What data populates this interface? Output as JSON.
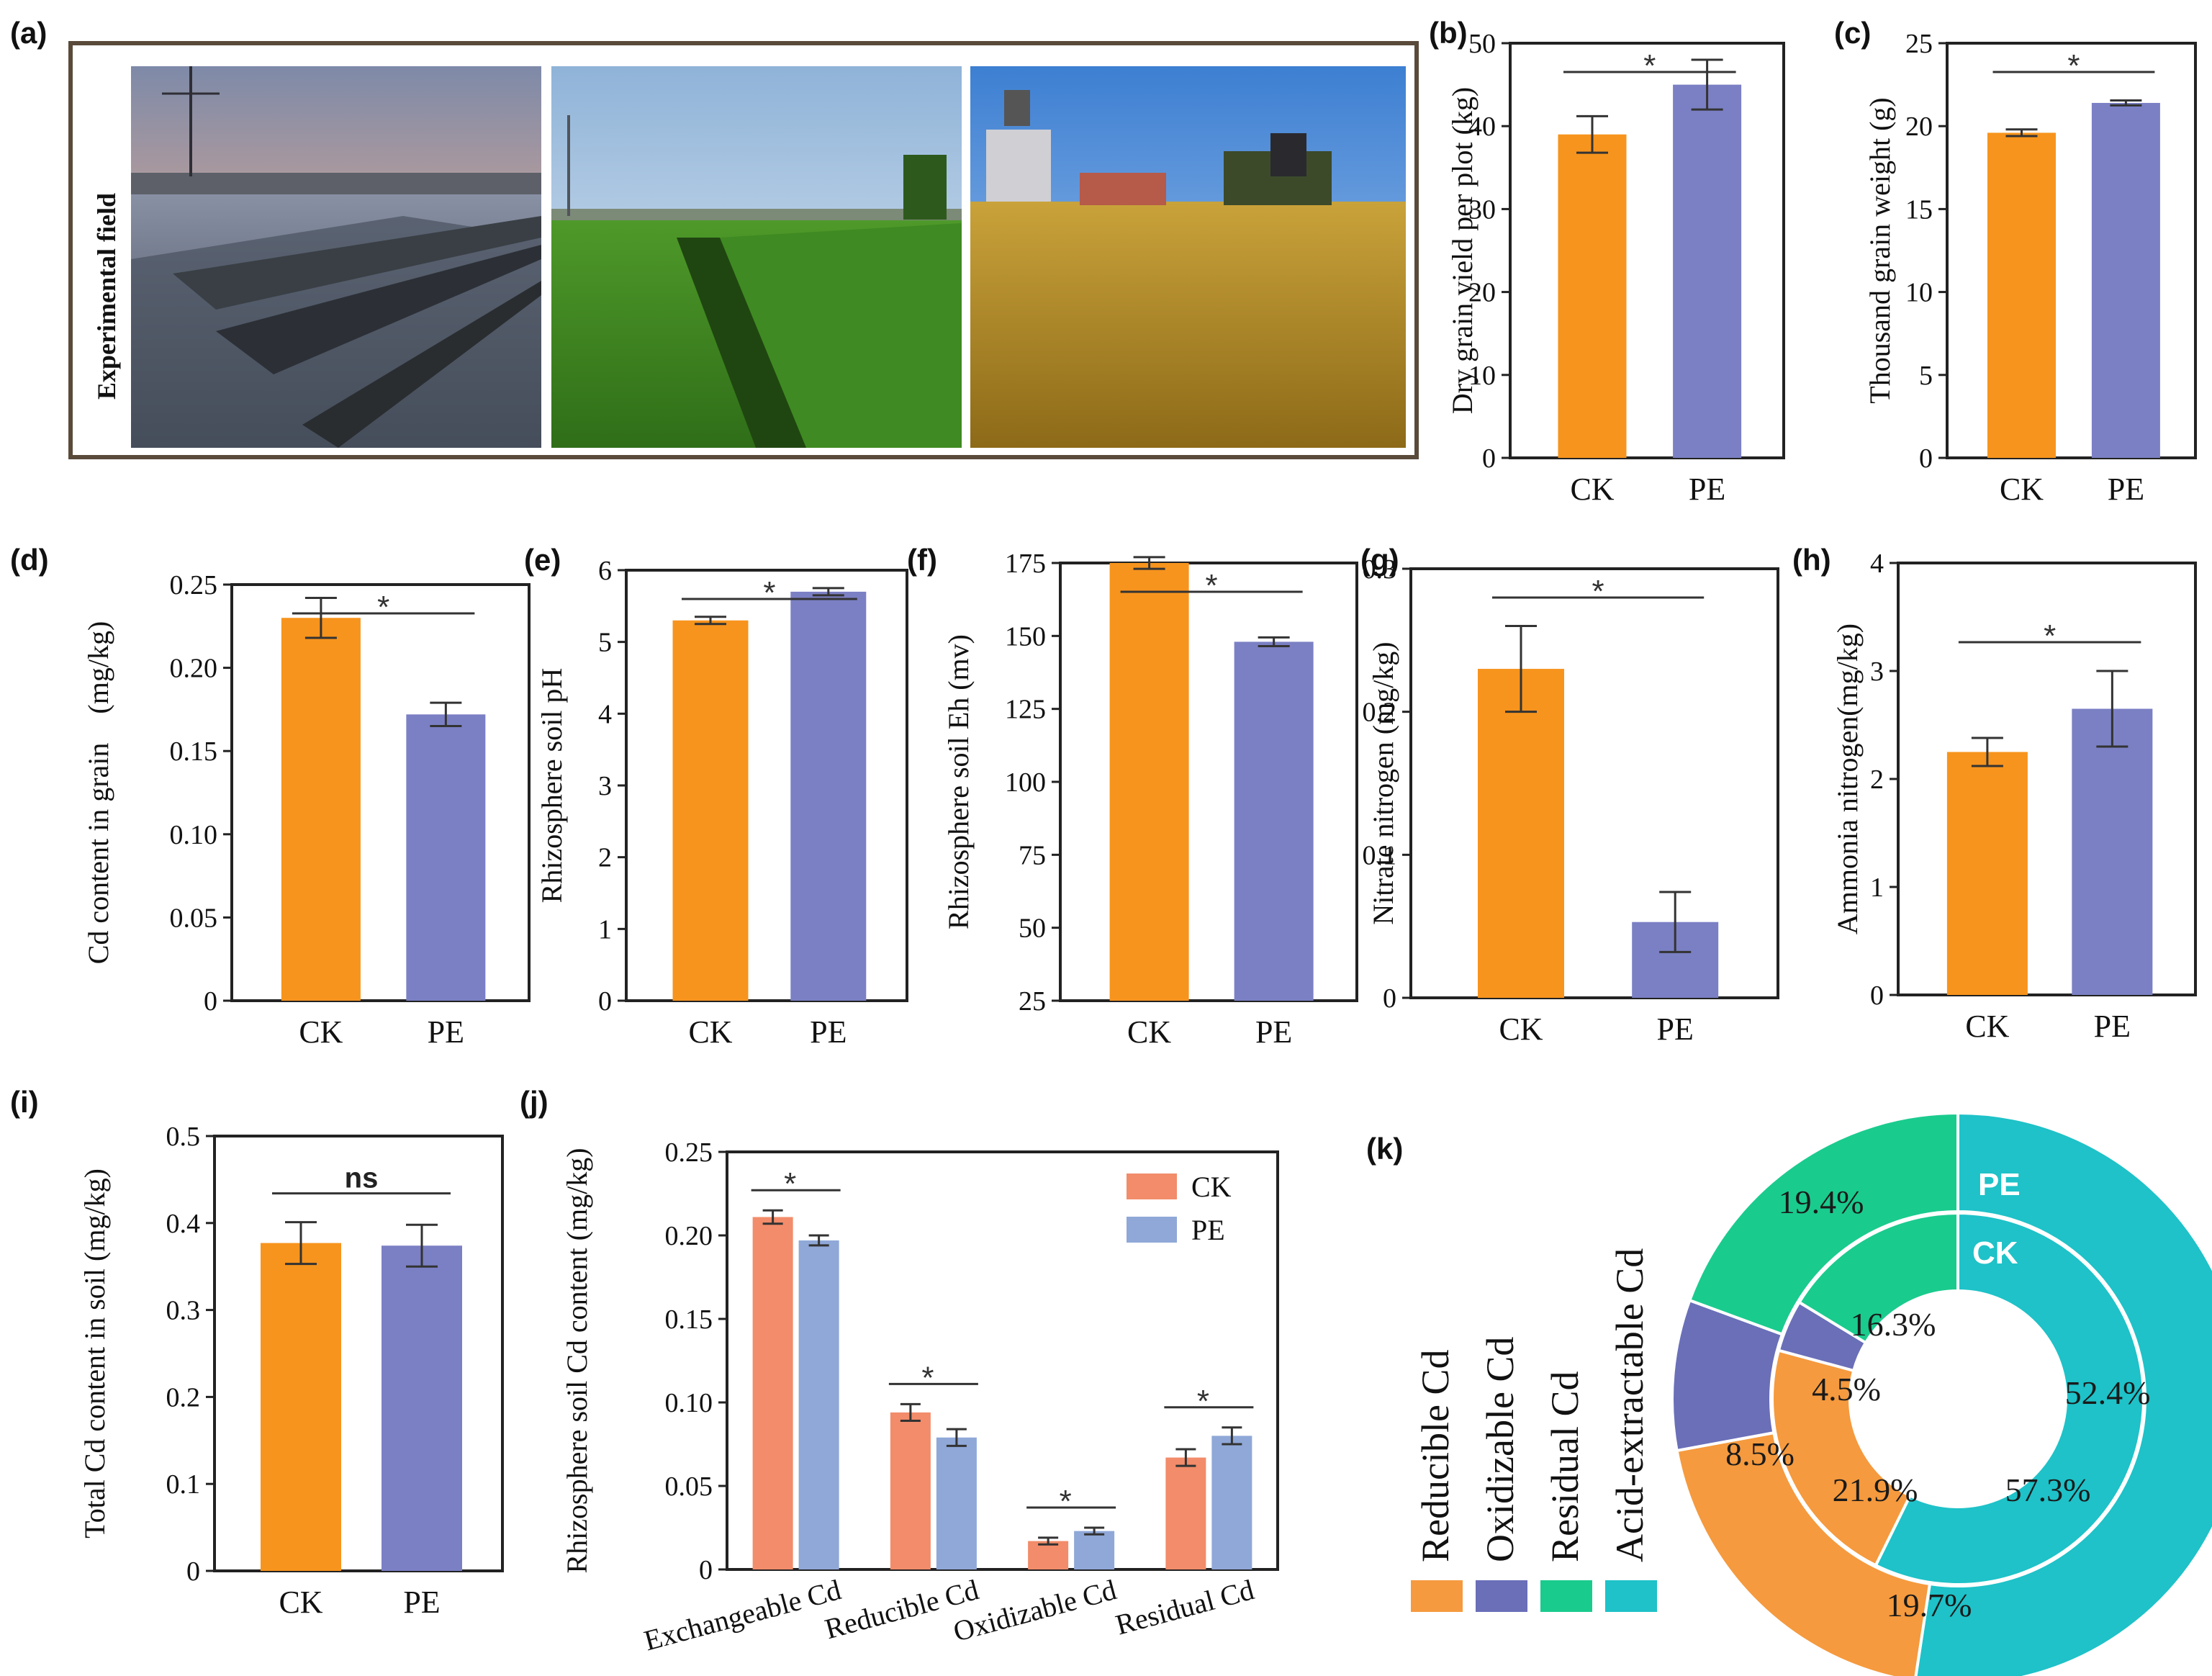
{
  "colors": {
    "ck": "#F7941D",
    "pe": "#7B80C4",
    "ck_light": "#F28C6A",
    "pe_light": "#8FA8D8",
    "acid": "#1EC2C8",
    "residual": "#1ACB8E",
    "oxidizable": "#6A6FB8",
    "reducible": "#F59A3E"
  },
  "panel_a": {
    "label": "(a)",
    "title": "Experimental field"
  },
  "chart_data": [
    {
      "id": "b",
      "label": "(b)",
      "type": "bar",
      "categories": [
        "CK",
        "PE"
      ],
      "values": [
        39,
        45
      ],
      "errors": [
        2.2,
        3.0
      ],
      "ylabel": "Dry grain yield per plot (kg)",
      "ylim": [
        0,
        50
      ],
      "yticks": [
        "0",
        "10",
        "20",
        "30",
        "40",
        "50"
      ],
      "sig": "*"
    },
    {
      "id": "c",
      "label": "(c)",
      "type": "bar",
      "categories": [
        "CK",
        "PE"
      ],
      "values": [
        19.6,
        21.4
      ],
      "errors": [
        0.2,
        0.15
      ],
      "ylabel": "Thousand grain weight (g)",
      "ylim": [
        0,
        25
      ],
      "yticks": [
        "0",
        "5",
        "10",
        "15",
        "20",
        "25"
      ],
      "sig": "*"
    },
    {
      "id": "d",
      "label": "(d)",
      "type": "bar",
      "categories": [
        "CK",
        "PE"
      ],
      "values": [
        0.23,
        0.172
      ],
      "errors": [
        0.012,
        0.007
      ],
      "ylabel": "Cd content in grain　(mg/kg)",
      "ylim": [
        0,
        0.25
      ],
      "yticks": [
        "0",
        "0.05",
        "0.10",
        "0.15",
        "0.20",
        "0.25"
      ],
      "sig": "*"
    },
    {
      "id": "e",
      "label": "(e)",
      "type": "bar",
      "categories": [
        "CK",
        "PE"
      ],
      "values": [
        5.3,
        5.7
      ],
      "errors": [
        0.05,
        0.05
      ],
      "ylabel": "Rhizosphere soil pH",
      "ylim": [
        0,
        6
      ],
      "yticks": [
        "0",
        "1",
        "2",
        "3",
        "4",
        "5",
        "6"
      ],
      "sig": "*"
    },
    {
      "id": "f",
      "label": "(f)",
      "type": "bar",
      "categories": [
        "CK",
        "PE"
      ],
      "values": [
        175,
        148
      ],
      "errors": [
        2.0,
        1.5
      ],
      "ylabel": "Rhizosphere soil Eh (mv)",
      "ylim": [
        25,
        175
      ],
      "yticks": [
        "25",
        "50",
        "75",
        "100",
        "125",
        "150",
        "175"
      ],
      "sig": "*"
    },
    {
      "id": "g",
      "label": "(g)",
      "type": "bar",
      "categories": [
        "CK",
        "PE"
      ],
      "values": [
        0.23,
        0.053
      ],
      "errors": [
        0.03,
        0.021
      ],
      "ylabel": "Nitrate nitrogen (mg/kg)",
      "ylim": [
        0,
        0.3
      ],
      "yticks": [
        "0",
        "0.1",
        "0.2",
        "0.3"
      ],
      "sig": "*"
    },
    {
      "id": "h",
      "label": "(h)",
      "type": "bar",
      "categories": [
        "CK",
        "PE"
      ],
      "values": [
        2.25,
        2.65
      ],
      "errors": [
        0.13,
        0.35
      ],
      "ylabel": "Ammonia nitrogen(mg/kg)",
      "ylim": [
        0,
        4
      ],
      "yticks": [
        "0",
        "1",
        "2",
        "3",
        "4"
      ],
      "sig": "*"
    },
    {
      "id": "i",
      "label": "(i)",
      "type": "bar",
      "categories": [
        "CK",
        "PE"
      ],
      "values": [
        0.377,
        0.374
      ],
      "errors": [
        0.024,
        0.024
      ],
      "ylabel": "Total Cd content in soil (mg/kg)",
      "ylim": [
        0,
        0.5
      ],
      "yticks": [
        "0",
        "0.1",
        "0.2",
        "0.3",
        "0.4",
        "0.5"
      ],
      "sig": "ns"
    },
    {
      "id": "j",
      "label": "(j)",
      "type": "grouped-bar",
      "categories": [
        "Exchangeable Cd",
        "Reducible  Cd",
        "Oxidizable  Cd",
        "Residual  Cd"
      ],
      "series": [
        {
          "name": "CK",
          "values": [
            0.211,
            0.094,
            0.017,
            0.067
          ],
          "errors": [
            0.004,
            0.005,
            0.002,
            0.005
          ]
        },
        {
          "name": "PE",
          "values": [
            0.197,
            0.079,
            0.023,
            0.08
          ],
          "errors": [
            0.003,
            0.005,
            0.002,
            0.005
          ]
        }
      ],
      "ylabel": "Rhizosphere soil Cd content (mg/kg)",
      "ylim": [
        0,
        0.25
      ],
      "yticks": [
        "0",
        "0.05",
        "0.10",
        "0.15",
        "0.20",
        "0.25"
      ],
      "sig": [
        "*",
        "*",
        "*",
        "*"
      ]
    },
    {
      "id": "k",
      "label": "(k)",
      "type": "pie",
      "legend": [
        "Reducible Cd",
        "Oxidizable Cd",
        "Residual Cd",
        "Acid-extractable Cd"
      ],
      "rings": [
        {
          "name": "PE",
          "values": [
            52.4,
            19.7,
            8.5,
            19.4
          ],
          "labels": [
            "52.4%",
            "19.7%",
            "8.5%",
            "19.4%"
          ]
        },
        {
          "name": "CK",
          "values": [
            57.3,
            21.9,
            4.5,
            16.3
          ],
          "labels": [
            "57.3%",
            "21.9%",
            "4.5%",
            "16.3%"
          ]
        }
      ],
      "order": [
        "Acid-extractable Cd",
        "Reducible Cd",
        "Oxidizable Cd",
        "Residual Cd"
      ]
    }
  ]
}
